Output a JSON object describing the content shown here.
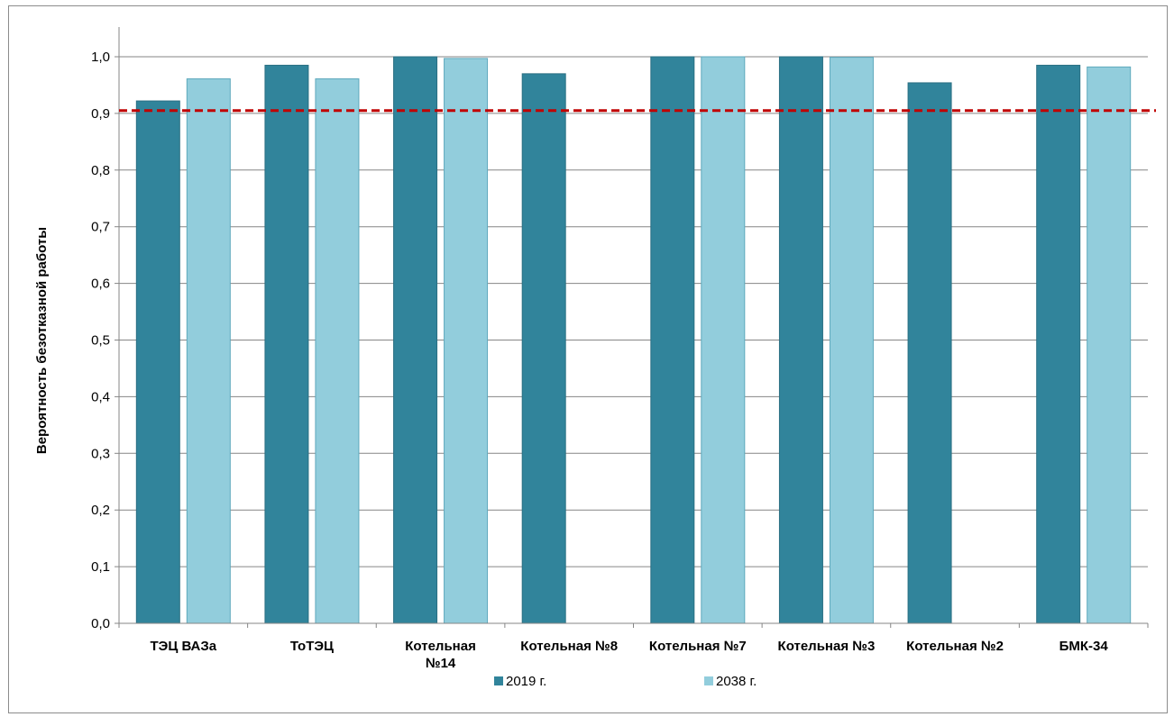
{
  "chart_data": {
    "type": "bar",
    "ylabel": "Вероятность безотказной работы",
    "xlabel": "",
    "ylim": [
      0,
      1.0
    ],
    "yticks": [
      "0,0",
      "0,1",
      "0,2",
      "0,3",
      "0,4",
      "0,5",
      "0,6",
      "0,7",
      "0,8",
      "0,9",
      "1,0"
    ],
    "grid": true,
    "legend_position": "bottom",
    "categories": [
      [
        "ТЭЦ ВАЗа"
      ],
      [
        "ТоТЭЦ"
      ],
      [
        "Котельная",
        "№14"
      ],
      [
        "Котельная №8"
      ],
      [
        "Котельная №7"
      ],
      [
        "Котельная №3"
      ],
      [
        "Котельная №2"
      ],
      [
        "БМК-34"
      ]
    ],
    "series": [
      {
        "name": "2019 г.",
        "color": "#31849b",
        "values": [
          0.922,
          0.985,
          1.0,
          0.97,
          1.0,
          1.0,
          0.954,
          0.985
        ]
      },
      {
        "name": "2038 г.",
        "color": "#92cddc",
        "values": [
          0.961,
          0.961,
          0.997,
          null,
          1.0,
          0.999,
          null,
          0.982
        ]
      }
    ],
    "reference_line": {
      "value": 0.905,
      "color": "#c00000",
      "style": "dashed"
    }
  }
}
